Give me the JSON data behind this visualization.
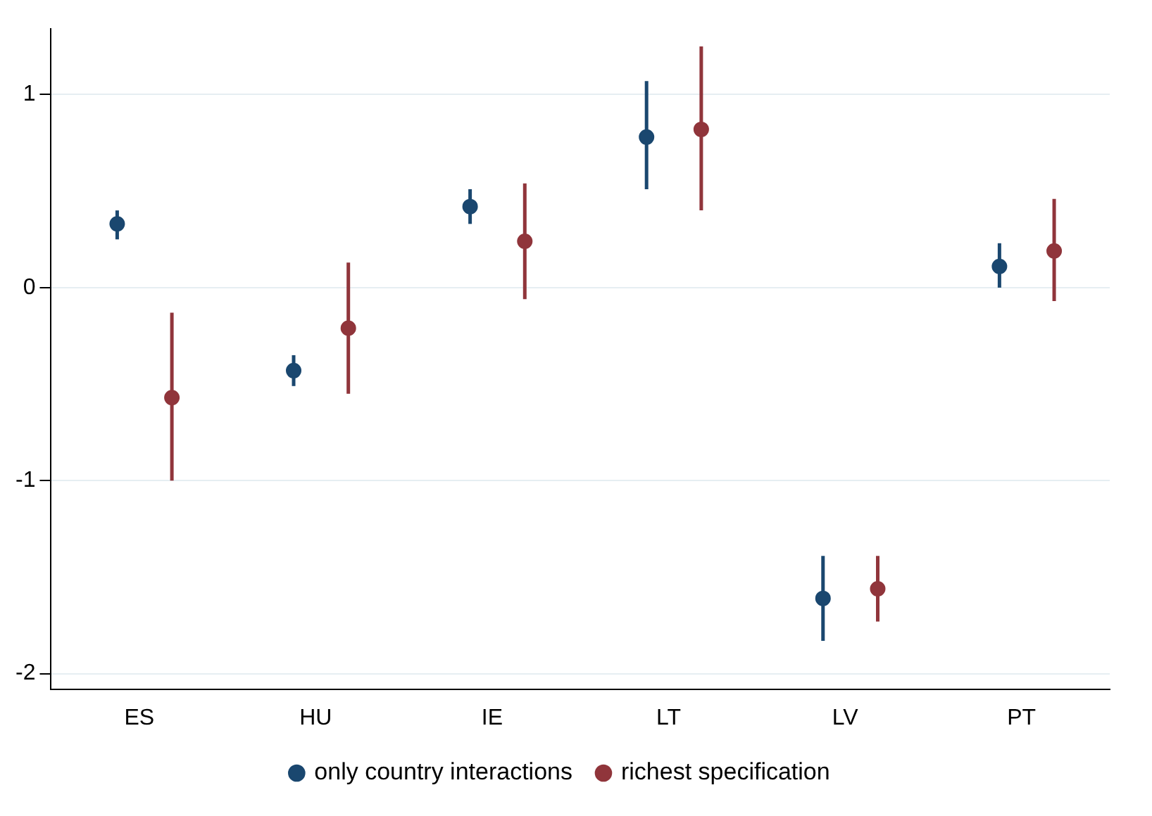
{
  "chart_data": {
    "type": "scatter",
    "categories": [
      "ES",
      "HU",
      "IE",
      "LT",
      "LV",
      "PT"
    ],
    "series": [
      {
        "name": "only country interactions",
        "color": "#1a476f",
        "values": [
          0.33,
          -0.43,
          0.42,
          0.78,
          -1.61,
          0.11
        ],
        "errors": [
          [
            0.25,
            0.4
          ],
          [
            -0.51,
            -0.35
          ],
          [
            0.33,
            0.51
          ],
          [
            0.51,
            1.07
          ],
          [
            -1.83,
            -1.39
          ],
          [
            0.0,
            0.23
          ]
        ]
      },
      {
        "name": "richest specification",
        "color": "#90353b",
        "values": [
          -0.57,
          -0.21,
          0.24,
          0.82,
          -1.56,
          0.19
        ],
        "errors": [
          [
            -1.0,
            -0.13
          ],
          [
            -0.55,
            0.13
          ],
          [
            -0.06,
            0.54
          ],
          [
            0.4,
            1.25
          ],
          [
            -1.73,
            -1.39
          ],
          [
            -0.07,
            0.46
          ]
        ]
      }
    ],
    "ylim": [
      -2.08,
      1.34
    ],
    "yticks": [
      -2,
      -1,
      0,
      1
    ],
    "grid": "y",
    "legend": "bottom",
    "marker": "circle"
  }
}
